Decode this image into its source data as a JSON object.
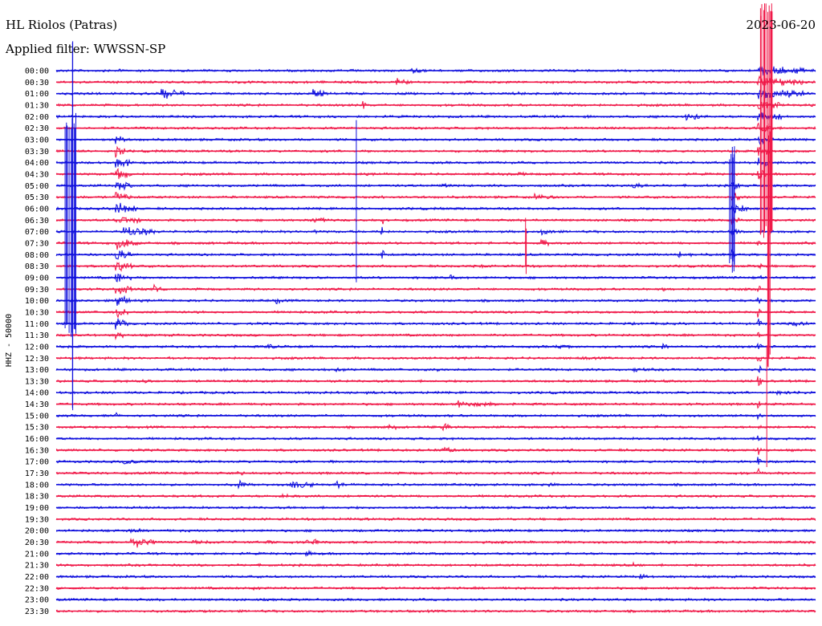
{
  "header": {
    "station": "HL Riolos (Patras)",
    "filter": "Applied filter: WWSSN-SP",
    "date": "2023-06-20"
  },
  "colors": {
    "trace_blue": "#1010dd",
    "trace_red": "#f01848",
    "background": "#ffffff",
    "text": "#000000"
  },
  "chart_data": {
    "type": "line",
    "title": "HL Riolos (Patras)",
    "subtitle": "Applied filter: WWSSN-SP",
    "ylabel": "HHZ - 50000",
    "xlabel": "",
    "grid": false,
    "legend": "none",
    "row_colors": [
      "blue",
      "red"
    ],
    "rows": [
      {
        "label": "00:00",
        "color": "blue",
        "events": [
          {
            "at": 0.085,
            "amp": 0.4,
            "dur": 0.003
          },
          {
            "at": 0.47,
            "amp": 0.6,
            "dur": 0.01
          },
          {
            "at": 0.925,
            "amp": 1.0,
            "dur": 0.06
          }
        ]
      },
      {
        "label": "00:30",
        "color": "red",
        "events": [
          {
            "at": 0.25,
            "amp": 0.3,
            "dur": 0.02
          },
          {
            "at": 0.45,
            "amp": 0.6,
            "dur": 0.02
          },
          {
            "at": 0.925,
            "amp": 1.0,
            "dur": 0.06
          }
        ]
      },
      {
        "label": "01:00",
        "color": "blue",
        "events": [
          {
            "at": 0.14,
            "amp": 1.0,
            "dur": 0.03
          },
          {
            "at": 0.34,
            "amp": 0.8,
            "dur": 0.015
          },
          {
            "at": 0.61,
            "amp": 0.3,
            "dur": 0.02
          },
          {
            "at": 0.925,
            "amp": 1.0,
            "dur": 0.06
          }
        ]
      },
      {
        "label": "01:30",
        "color": "red",
        "events": [
          {
            "at": 0.405,
            "amp": 1.0,
            "dur": 0.003
          },
          {
            "at": 0.925,
            "amp": 1.0,
            "dur": 0.03
          }
        ]
      },
      {
        "label": "02:00",
        "color": "blue",
        "events": [
          {
            "at": 0.83,
            "amp": 0.9,
            "dur": 0.02
          },
          {
            "at": 0.925,
            "amp": 1.0,
            "dur": 0.03
          }
        ]
      },
      {
        "label": "02:30",
        "color": "red",
        "events": [
          {
            "at": 0.2,
            "amp": 0.3,
            "dur": 0.01
          },
          {
            "at": 0.925,
            "amp": 1.0,
            "dur": 0.02
          }
        ]
      },
      {
        "label": "03:00",
        "color": "blue",
        "events": [
          {
            "at": 0.08,
            "amp": 1.0,
            "dur": 0.01
          },
          {
            "at": 0.925,
            "amp": 1.0,
            "dur": 0.02
          }
        ]
      },
      {
        "label": "03:30",
        "color": "red",
        "events": [
          {
            "at": 0.08,
            "amp": 1.0,
            "dur": 0.01
          },
          {
            "at": 0.76,
            "amp": 0.4,
            "dur": 0.005
          },
          {
            "at": 0.925,
            "amp": 1.0,
            "dur": 0.02
          }
        ]
      },
      {
        "label": "04:00",
        "color": "blue",
        "events": [
          {
            "at": 0.08,
            "amp": 1.0,
            "dur": 0.02
          },
          {
            "at": 0.925,
            "amp": 1.0,
            "dur": 0.015
          }
        ]
      },
      {
        "label": "04:30",
        "color": "red",
        "events": [
          {
            "at": 0.08,
            "amp": 1.0,
            "dur": 0.02
          },
          {
            "at": 0.61,
            "amp": 0.3,
            "dur": 0.03
          },
          {
            "at": 0.925,
            "amp": 1.0,
            "dur": 0.01
          }
        ]
      },
      {
        "label": "05:00",
        "color": "blue",
        "events": [
          {
            "at": 0.08,
            "amp": 1.0,
            "dur": 0.02
          },
          {
            "at": 0.51,
            "amp": 0.4,
            "dur": 0.01
          },
          {
            "at": 0.76,
            "amp": 0.5,
            "dur": 0.02
          },
          {
            "at": 0.89,
            "amp": 1.0,
            "dur": 0.01
          }
        ]
      },
      {
        "label": "05:30",
        "color": "red",
        "events": [
          {
            "at": 0.08,
            "amp": 1.0,
            "dur": 0.02
          },
          {
            "at": 0.43,
            "amp": 0.3,
            "dur": 0.02
          },
          {
            "at": 0.63,
            "amp": 0.5,
            "dur": 0.03
          },
          {
            "at": 0.89,
            "amp": 1.0,
            "dur": 0.01
          }
        ]
      },
      {
        "label": "06:00",
        "color": "blue",
        "events": [
          {
            "at": 0.08,
            "amp": 1.0,
            "dur": 0.03
          },
          {
            "at": 0.89,
            "amp": 1.0,
            "dur": 0.02
          }
        ]
      },
      {
        "label": "06:30",
        "color": "red",
        "events": [
          {
            "at": 0.08,
            "amp": 1.0,
            "dur": 0.03
          },
          {
            "at": 0.34,
            "amp": 0.5,
            "dur": 0.03
          },
          {
            "at": 0.43,
            "amp": 0.8,
            "dur": 0.003
          },
          {
            "at": 0.89,
            "amp": 1.0,
            "dur": 0.01
          }
        ]
      },
      {
        "label": "07:00",
        "color": "blue",
        "events": [
          {
            "at": 0.09,
            "amp": 1.0,
            "dur": 0.04
          },
          {
            "at": 0.23,
            "amp": 0.4,
            "dur": 0.01
          },
          {
            "at": 0.34,
            "amp": 0.4,
            "dur": 0.01
          },
          {
            "at": 0.43,
            "amp": 1.0,
            "dur": 0.003
          },
          {
            "at": 0.64,
            "amp": 0.5,
            "dur": 0.02
          },
          {
            "at": 0.89,
            "amp": 1.0,
            "dur": 0.01
          }
        ]
      },
      {
        "label": "07:30",
        "color": "red",
        "events": [
          {
            "at": 0.08,
            "amp": 1.0,
            "dur": 0.03
          },
          {
            "at": 0.64,
            "amp": 1.0,
            "dur": 0.01
          },
          {
            "at": 0.925,
            "amp": 1.0,
            "dur": 0.004
          }
        ]
      },
      {
        "label": "08:00",
        "color": "blue",
        "events": [
          {
            "at": 0.08,
            "amp": 1.0,
            "dur": 0.02
          },
          {
            "at": 0.43,
            "amp": 0.8,
            "dur": 0.003
          },
          {
            "at": 0.82,
            "amp": 0.6,
            "dur": 0.02
          },
          {
            "at": 0.89,
            "amp": 1.0,
            "dur": 0.004
          }
        ]
      },
      {
        "label": "08:30",
        "color": "red",
        "events": [
          {
            "at": 0.08,
            "amp": 1.0,
            "dur": 0.02
          },
          {
            "at": 0.56,
            "amp": 0.4,
            "dur": 0.01
          },
          {
            "at": 0.925,
            "amp": 1.0,
            "dur": 0.004
          }
        ]
      },
      {
        "label": "09:00",
        "color": "blue",
        "events": [
          {
            "at": 0.08,
            "amp": 1.0,
            "dur": 0.02
          },
          {
            "at": 0.52,
            "amp": 0.6,
            "dur": 0.01
          },
          {
            "at": 0.925,
            "amp": 1.0,
            "dur": 0.004
          }
        ]
      },
      {
        "label": "09:30",
        "color": "red",
        "events": [
          {
            "at": 0.08,
            "amp": 1.0,
            "dur": 0.02
          },
          {
            "at": 0.13,
            "amp": 0.7,
            "dur": 0.01
          },
          {
            "at": 0.8,
            "amp": 0.4,
            "dur": 0.01
          },
          {
            "at": 0.925,
            "amp": 1.0,
            "dur": 0.004
          }
        ]
      },
      {
        "label": "10:00",
        "color": "blue",
        "events": [
          {
            "at": 0.08,
            "amp": 1.0,
            "dur": 0.02
          },
          {
            "at": 0.29,
            "amp": 0.5,
            "dur": 0.01
          },
          {
            "at": 0.925,
            "amp": 1.0,
            "dur": 0.004
          }
        ]
      },
      {
        "label": "10:30",
        "color": "red",
        "events": [
          {
            "at": 0.08,
            "amp": 1.0,
            "dur": 0.015
          },
          {
            "at": 0.18,
            "amp": 0.3,
            "dur": 0.03
          },
          {
            "at": 0.925,
            "amp": 1.0,
            "dur": 0.004
          }
        ]
      },
      {
        "label": "11:00",
        "color": "blue",
        "events": [
          {
            "at": 0.08,
            "amp": 1.0,
            "dur": 0.015
          },
          {
            "at": 0.97,
            "amp": 0.5,
            "dur": 0.02
          },
          {
            "at": 0.925,
            "amp": 1.0,
            "dur": 0.004
          }
        ]
      },
      {
        "label": "11:30",
        "color": "red",
        "events": [
          {
            "at": 0.08,
            "amp": 0.8,
            "dur": 0.01
          },
          {
            "at": 0.925,
            "amp": 1.0,
            "dur": 0.004
          }
        ]
      },
      {
        "label": "12:00",
        "color": "blue",
        "events": [
          {
            "at": 0.28,
            "amp": 0.4,
            "dur": 0.03
          },
          {
            "at": 0.66,
            "amp": 0.4,
            "dur": 0.02
          },
          {
            "at": 0.8,
            "amp": 0.5,
            "dur": 0.01
          },
          {
            "at": 0.925,
            "amp": 1.0,
            "dur": 0.004
          }
        ]
      },
      {
        "label": "12:30",
        "color": "red",
        "events": [
          {
            "at": 0.15,
            "amp": 0.3,
            "dur": 0.01
          },
          {
            "at": 0.69,
            "amp": 0.3,
            "dur": 0.02
          },
          {
            "at": 0.925,
            "amp": 1.0,
            "dur": 0.004
          }
        ]
      },
      {
        "label": "13:00",
        "color": "blue",
        "events": [
          {
            "at": 0.37,
            "amp": 0.4,
            "dur": 0.02
          },
          {
            "at": 0.5,
            "amp": 0.5,
            "dur": 0.01
          },
          {
            "at": 0.76,
            "amp": 0.4,
            "dur": 0.02
          },
          {
            "at": 0.925,
            "amp": 1.0,
            "dur": 0.004
          }
        ]
      },
      {
        "label": "13:30",
        "color": "red",
        "events": [
          {
            "at": 0.11,
            "amp": 0.5,
            "dur": 0.015
          },
          {
            "at": 0.925,
            "amp": 1.0,
            "dur": 0.004
          }
        ]
      },
      {
        "label": "14:00",
        "color": "blue",
        "events": [
          {
            "at": 0.41,
            "amp": 0.3,
            "dur": 0.02
          },
          {
            "at": 0.95,
            "amp": 0.4,
            "dur": 0.05
          }
        ]
      },
      {
        "label": "14:30",
        "color": "red",
        "events": [
          {
            "at": 0.53,
            "amp": 0.6,
            "dur": 0.05
          },
          {
            "at": 0.925,
            "amp": 1.0,
            "dur": 0.004
          }
        ]
      },
      {
        "label": "15:00",
        "color": "blue",
        "events": [
          {
            "at": 0.08,
            "amp": 0.5,
            "dur": 0.005
          },
          {
            "at": 0.925,
            "amp": 0.5,
            "dur": 0.004
          }
        ]
      },
      {
        "label": "15:30",
        "color": "red",
        "events": [
          {
            "at": 0.44,
            "amp": 0.6,
            "dur": 0.01
          },
          {
            "at": 0.51,
            "amp": 1.0,
            "dur": 0.01
          },
          {
            "at": 0.925,
            "amp": 1.0,
            "dur": 0.004
          }
        ]
      },
      {
        "label": "16:00",
        "color": "blue",
        "events": [
          {
            "at": 0.925,
            "amp": 1.0,
            "dur": 0.004
          }
        ]
      },
      {
        "label": "16:30",
        "color": "red",
        "events": [
          {
            "at": 0.51,
            "amp": 0.6,
            "dur": 0.02
          },
          {
            "at": 0.925,
            "amp": 1.0,
            "dur": 0.004
          }
        ]
      },
      {
        "label": "17:00",
        "color": "blue",
        "events": [
          {
            "at": 0.09,
            "amp": 0.5,
            "dur": 0.02
          },
          {
            "at": 0.36,
            "amp": 0.3,
            "dur": 0.01
          },
          {
            "at": 0.925,
            "amp": 1.0,
            "dur": 0.004
          }
        ]
      },
      {
        "label": "17:30",
        "color": "red",
        "events": [
          {
            "at": 0.24,
            "amp": 0.6,
            "dur": 0.01
          },
          {
            "at": 0.925,
            "amp": 1.0,
            "dur": 0.004
          }
        ]
      },
      {
        "label": "18:00",
        "color": "blue",
        "events": [
          {
            "at": 0.24,
            "amp": 1.0,
            "dur": 0.01
          },
          {
            "at": 0.31,
            "amp": 0.8,
            "dur": 0.03
          },
          {
            "at": 0.37,
            "amp": 0.6,
            "dur": 0.015
          },
          {
            "at": 0.65,
            "amp": 0.4,
            "dur": 0.01
          }
        ]
      },
      {
        "label": "18:30",
        "color": "red",
        "events": [
          {
            "at": 0.3,
            "amp": 0.4,
            "dur": 0.02
          }
        ]
      },
      {
        "label": "19:00",
        "color": "blue",
        "events": []
      },
      {
        "label": "19:30",
        "color": "red",
        "events": [
          {
            "at": 0.4,
            "amp": 0.3,
            "dur": 0.02
          }
        ]
      },
      {
        "label": "20:00",
        "color": "blue",
        "events": [
          {
            "at": 0.1,
            "amp": 0.6,
            "dur": 0.01
          }
        ]
      },
      {
        "label": "20:30",
        "color": "red",
        "events": [
          {
            "at": 0.1,
            "amp": 1.0,
            "dur": 0.03
          },
          {
            "at": 0.18,
            "amp": 0.4,
            "dur": 0.03
          },
          {
            "at": 0.28,
            "amp": 0.4,
            "dur": 0.02
          },
          {
            "at": 0.33,
            "amp": 0.8,
            "dur": 0.015
          }
        ]
      },
      {
        "label": "21:00",
        "color": "blue",
        "events": [
          {
            "at": 0.33,
            "amp": 0.5,
            "dur": 0.01
          }
        ]
      },
      {
        "label": "21:30",
        "color": "red",
        "events": [
          {
            "at": 0.76,
            "amp": 0.4,
            "dur": 0.01
          }
        ]
      },
      {
        "label": "22:00",
        "color": "blue",
        "events": [
          {
            "at": 0.77,
            "amp": 0.5,
            "dur": 0.01
          }
        ]
      },
      {
        "label": "22:30",
        "color": "red",
        "events": [
          {
            "at": 0.26,
            "amp": 0.3,
            "dur": 0.03
          }
        ]
      },
      {
        "label": "23:00",
        "color": "blue",
        "events": []
      },
      {
        "label": "23:30",
        "color": "red",
        "events": []
      }
    ]
  }
}
